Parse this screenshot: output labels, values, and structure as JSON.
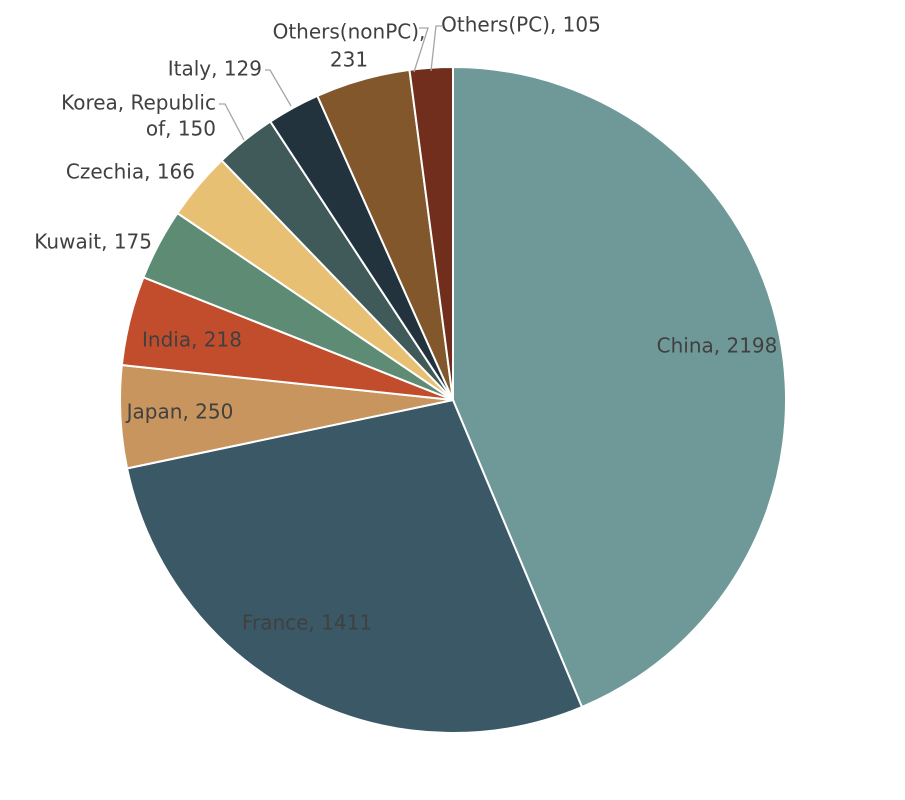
{
  "chart_data": {
    "type": "pie",
    "title": "",
    "start": "12 o'clock",
    "direction": "clockwise",
    "slices": [
      {
        "label": "China, 2198",
        "name": "China",
        "value": 2198,
        "color": "#6f9998",
        "label_color": "#404040"
      },
      {
        "label": "France, 1411",
        "name": "France",
        "value": 1411,
        "color": "#3a5866",
        "label_color": "#404040"
      },
      {
        "label": "Japan, 250",
        "name": "Japan",
        "value": 250,
        "color": "#c8955f",
        "label_color": "#404040"
      },
      {
        "label": "India, 218",
        "name": "India",
        "value": 218,
        "color": "#c14d2c",
        "label_color": "#404040"
      },
      {
        "label": "Kuwait, 175",
        "name": "Kuwait",
        "value": 175,
        "color": "#5e8b74",
        "label_color": "#404040"
      },
      {
        "label": "Czechia, 166",
        "name": "Czechia",
        "value": 166,
        "color": "#e8c073",
        "label_color": "#404040"
      },
      {
        "label": "Korea, Republic\nof, 150",
        "name": "Korea, Republic of",
        "value": 150,
        "color": "#405a5a",
        "label_color": "#404040"
      },
      {
        "label": "Italy, 129",
        "name": "Italy",
        "value": 129,
        "color": "#22333d",
        "label_color": "#404040"
      },
      {
        "label": "Others(nonPC),\n231",
        "name": "Others(nonPC)",
        "value": 231,
        "color": "#82572b",
        "label_color": "#404040"
      },
      {
        "label": "Others(PC), 105",
        "name": "Others(PC)",
        "value": 105,
        "color": "#722e1c",
        "label_color": "#404040"
      }
    ]
  }
}
